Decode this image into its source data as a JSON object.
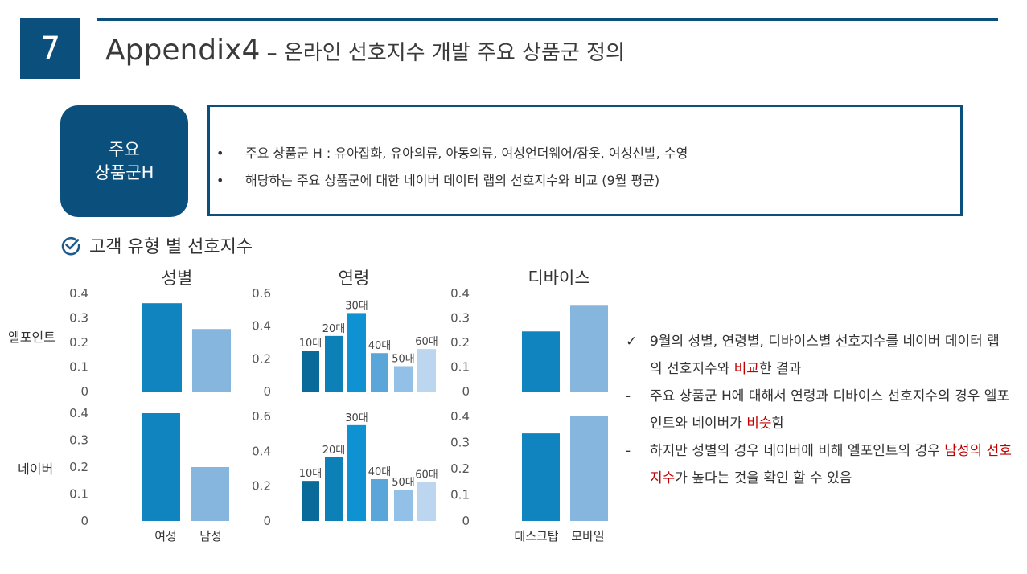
{
  "header": {
    "number": "7",
    "title_main": "Appendix4",
    "title_sub": " – 온라인 선호지수 개발 주요 상품군 정의"
  },
  "category": {
    "line1": "주요",
    "line2": "상품군H"
  },
  "info": {
    "bullet_symbol": "•",
    "bullets": [
      "주요 상품군 H : 유아잡화, 유아의류, 아동의류, 여성언더웨어/잠옷, 여성신발, 수영",
      "해당하는 주요 상품군에 대한 네이버 데이터 랩의 선호지수와 비교 (9월 평균)"
    ]
  },
  "section": {
    "title": "고객 유형 별 선호지수"
  },
  "row_labels": {
    "top": "엘포인트",
    "bottom": "네이버"
  },
  "colors": {
    "navy": "#0b4f7c",
    "female": "#0f84bf",
    "male": "#86b6de",
    "age": [
      "#0a6b9b",
      "#0d80b8",
      "#0f92d2",
      "#5aa6d9",
      "#92c0e6",
      "#bcd6ef"
    ],
    "desktop": "#0f84bf",
    "mobile": "#86b6de",
    "red": "#c00000"
  },
  "chart_data": [
    {
      "id": "gender-lpoint",
      "type": "bar",
      "title": "성별",
      "categories": [
        "여성",
        "남성"
      ],
      "values": [
        0.36,
        0.255
      ],
      "ylim": [
        0,
        0.4
      ],
      "yticks": [
        "0",
        "0.1",
        "0.2",
        "0.3",
        "0.4"
      ]
    },
    {
      "id": "age-lpoint",
      "type": "bar",
      "title": "연령",
      "categories": [
        "10대",
        "20대",
        "30대",
        "40대",
        "50대",
        "60대"
      ],
      "values": [
        0.25,
        0.34,
        0.48,
        0.235,
        0.155,
        0.26
      ],
      "ylim": [
        0,
        0.6
      ],
      "yticks": [
        "0",
        "0.2",
        "0.4",
        "0.6"
      ]
    },
    {
      "id": "device-lpoint",
      "type": "bar",
      "title": "디바이스",
      "categories": [
        "데스크탑",
        "모바일"
      ],
      "values": [
        0.245,
        0.35
      ],
      "ylim": [
        0,
        0.4
      ],
      "yticks": [
        "0",
        "0.1",
        "0.2",
        "0.3",
        "0.4"
      ]
    },
    {
      "id": "gender-naver",
      "type": "bar",
      "title": "",
      "categories": [
        "여성",
        "남성"
      ],
      "values": [
        0.4,
        0.2
      ],
      "ylim": [
        0,
        0.4
      ],
      "yticks": [
        "0",
        "0.1",
        "0.2",
        "0.3",
        "0.4"
      ]
    },
    {
      "id": "age-naver",
      "type": "bar",
      "title": "",
      "categories": [
        "10대",
        "20대",
        "30대",
        "40대",
        "50대",
        "60대"
      ],
      "values": [
        0.23,
        0.365,
        0.55,
        0.24,
        0.18,
        0.225
      ],
      "ylim": [
        0,
        0.6
      ],
      "yticks": [
        "0",
        "0.2",
        "0.4",
        "0.6"
      ]
    },
    {
      "id": "device-naver",
      "type": "bar",
      "title": "",
      "categories": [
        "데스크탑",
        "모바일"
      ],
      "values": [
        0.335,
        0.4
      ],
      "ylim": [
        0,
        0.4
      ],
      "yticks": [
        "0",
        "0.1",
        "0.2",
        "0.3",
        "0.4"
      ]
    }
  ],
  "x_labels": {
    "female": "여성",
    "male": "남성",
    "desktop": "데스크탑",
    "mobile": "모바일"
  },
  "notes": [
    {
      "mark": "✓",
      "parts": [
        {
          "t": "9월의 성별, 연령별, 디바이스별 선호지수를 네이버 데이터 랩의 선호지수와 ",
          "red": false
        },
        {
          "t": "비교",
          "red": true
        },
        {
          "t": "한 결과",
          "red": false
        }
      ]
    },
    {
      "mark": "-",
      "parts": [
        {
          "t": "주요 상품군 H에 대해서 연령과 디바이스 선호지수의 경우 엘포인트와 네이버가 ",
          "red": false
        },
        {
          "t": "비슷",
          "red": true
        },
        {
          "t": "함",
          "red": false
        }
      ]
    },
    {
      "mark": "-",
      "parts": [
        {
          "t": "하지만 성별의 경우 네이버에 비해 엘포인트의 경우 ",
          "red": false
        },
        {
          "t": "남성의 선호지수",
          "red": true
        },
        {
          "t": "가 높다는 것을 확인 할 수 있음",
          "red": false
        }
      ]
    }
  ]
}
